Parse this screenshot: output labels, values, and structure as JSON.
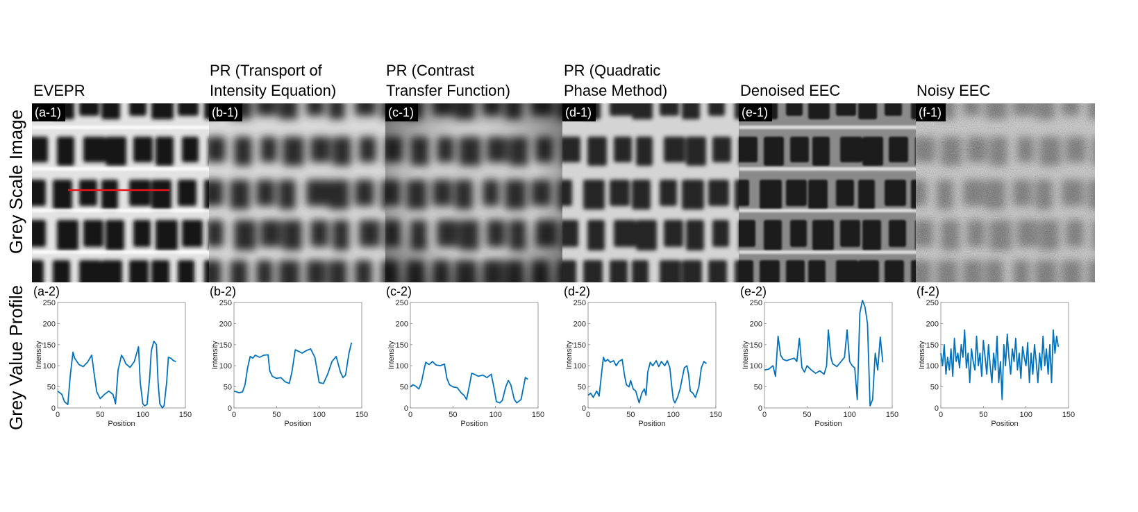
{
  "row_labels": {
    "top": "Grey Scale Image",
    "bottom": "Grey Value Profile"
  },
  "colors": {
    "line": "#0072BD",
    "marker_line": "#E8141B",
    "axis": "#808080"
  },
  "panels": [
    {
      "id": "a",
      "title": "EVEPR",
      "image_label": "(a-1)",
      "plot_label": "(a-2)"
    },
    {
      "id": "b",
      "title": "PR (Transport of\nIntensity Equation)",
      "image_label": "(b-1)",
      "plot_label": "(b-2)"
    },
    {
      "id": "c",
      "title": "PR (Contrast\nTransfer Function)",
      "image_label": "(c-1)",
      "plot_label": "(c-2)"
    },
    {
      "id": "d",
      "title": "PR (Quadratic\nPhase Method)",
      "image_label": "(d-1)",
      "plot_label": "(d-2)"
    },
    {
      "id": "e",
      "title": "Denoised EEC",
      "image_label": "(e-1)",
      "plot_label": "(e-2)"
    },
    {
      "id": "f",
      "title": "Noisy EEC",
      "image_label": "(f-1)",
      "plot_label": "(f-2)"
    }
  ],
  "chart_data": [
    {
      "type": "line",
      "panel": "a-2",
      "xlabel": "Position",
      "ylabel": "Intensity",
      "xlim": [
        0,
        150
      ],
      "ylim": [
        0,
        250
      ],
      "xticks": [
        0,
        50,
        100,
        150
      ],
      "yticks": [
        0,
        50,
        100,
        150,
        200,
        250
      ],
      "x": [
        0,
        5,
        8,
        12,
        15,
        18,
        20,
        25,
        30,
        35,
        40,
        43,
        46,
        50,
        55,
        60,
        65,
        68,
        71,
        75,
        78,
        80,
        85,
        90,
        95,
        97,
        100,
        102,
        105,
        108,
        110,
        113,
        116,
        118,
        120,
        123,
        125,
        128,
        130,
        133,
        136,
        139
      ],
      "y": [
        40,
        32,
        15,
        8,
        80,
        132,
        118,
        103,
        98,
        108,
        125,
        80,
        38,
        22,
        32,
        40,
        32,
        10,
        90,
        125,
        115,
        105,
        96,
        110,
        145,
        60,
        10,
        5,
        8,
        70,
        135,
        158,
        150,
        60,
        10,
        0,
        5,
        60,
        120,
        118,
        112,
        110
      ]
    },
    {
      "type": "line",
      "panel": "b-2",
      "xlabel": "Position",
      "ylabel": "Intensity",
      "xlim": [
        0,
        150
      ],
      "ylim": [
        0,
        250
      ],
      "xticks": [
        0,
        50,
        100,
        150
      ],
      "yticks": [
        0,
        50,
        100,
        150,
        200,
        250
      ],
      "x": [
        0,
        3,
        6,
        10,
        13,
        16,
        19,
        22,
        25,
        30,
        35,
        40,
        42,
        45,
        50,
        55,
        60,
        65,
        68,
        72,
        75,
        80,
        85,
        90,
        95,
        100,
        105,
        110,
        115,
        120,
        125,
        128,
        131,
        135,
        138
      ],
      "y": [
        40,
        38,
        36,
        38,
        55,
        95,
        122,
        118,
        125,
        120,
        125,
        126,
        88,
        75,
        70,
        72,
        62,
        58,
        85,
        138,
        135,
        130,
        136,
        140,
        120,
        60,
        58,
        80,
        110,
        122,
        85,
        72,
        78,
        130,
        155
      ]
    },
    {
      "type": "line",
      "panel": "c-2",
      "xlabel": "Position",
      "ylabel": "Intensity",
      "xlim": [
        0,
        150
      ],
      "ylim": [
        0,
        250
      ],
      "xticks": [
        0,
        50,
        100,
        150
      ],
      "yticks": [
        0,
        50,
        100,
        150,
        200,
        250
      ],
      "x": [
        0,
        3,
        6,
        10,
        13,
        16,
        18,
        22,
        26,
        30,
        35,
        40,
        43,
        46,
        50,
        55,
        60,
        63,
        66,
        70,
        72,
        75,
        80,
        85,
        90,
        95,
        98,
        101,
        105,
        108,
        112,
        115,
        118,
        122,
        125,
        130,
        135,
        138
      ],
      "y": [
        50,
        55,
        52,
        45,
        60,
        90,
        108,
        103,
        110,
        102,
        100,
        104,
        70,
        55,
        50,
        48,
        35,
        30,
        20,
        60,
        82,
        80,
        75,
        78,
        72,
        80,
        50,
        15,
        12,
        18,
        50,
        65,
        55,
        20,
        12,
        20,
        72,
        68
      ]
    },
    {
      "type": "line",
      "panel": "d-2",
      "xlabel": "Position",
      "ylabel": "Intensity",
      "xlim": [
        0,
        150
      ],
      "ylim": [
        0,
        250
      ],
      "xticks": [
        0,
        50,
        100,
        150
      ],
      "yticks": [
        0,
        50,
        100,
        150,
        200,
        250
      ],
      "x": [
        0,
        3,
        6,
        10,
        13,
        16,
        18,
        20,
        23,
        26,
        30,
        33,
        36,
        40,
        43,
        45,
        48,
        50,
        53,
        56,
        58,
        60,
        63,
        66,
        68,
        70,
        73,
        76,
        80,
        83,
        86,
        90,
        93,
        96,
        98,
        100,
        102,
        105,
        108,
        110,
        113,
        116,
        118,
        120,
        123,
        126,
        130,
        133,
        136,
        139
      ],
      "y": [
        30,
        35,
        25,
        40,
        28,
        85,
        120,
        110,
        115,
        108,
        112,
        100,
        110,
        115,
        75,
        55,
        50,
        65,
        45,
        40,
        25,
        12,
        35,
        45,
        30,
        85,
        108,
        100,
        112,
        98,
        110,
        100,
        112,
        95,
        55,
        20,
        12,
        25,
        45,
        65,
        95,
        100,
        80,
        40,
        35,
        25,
        50,
        95,
        110,
        105
      ]
    },
    {
      "type": "line",
      "panel": "e-2",
      "xlabel": "Position",
      "ylabel": "Intensity",
      "xlim": [
        0,
        150
      ],
      "ylim": [
        0,
        250
      ],
      "xticks": [
        0,
        50,
        100,
        150
      ],
      "yticks": [
        0,
        50,
        100,
        150,
        200,
        250
      ],
      "x": [
        0,
        5,
        10,
        13,
        16,
        19,
        22,
        26,
        30,
        35,
        38,
        41,
        44,
        47,
        50,
        55,
        60,
        65,
        70,
        73,
        75,
        78,
        80,
        85,
        90,
        94,
        97,
        100,
        103,
        106,
        109,
        112,
        115,
        118,
        121,
        124,
        127,
        130,
        133,
        136,
        139
      ],
      "y": [
        90,
        92,
        100,
        75,
        170,
        125,
        115,
        112,
        115,
        118,
        110,
        165,
        95,
        85,
        100,
        90,
        82,
        88,
        80,
        100,
        185,
        120,
        105,
        98,
        110,
        120,
        185,
        110,
        100,
        95,
        20,
        225,
        255,
        240,
        200,
        5,
        20,
        130,
        90,
        168,
        108
      ]
    },
    {
      "type": "line",
      "panel": "f-2",
      "xlabel": "Position",
      "ylabel": "Intensity",
      "xlim": [
        0,
        150
      ],
      "ylim": [
        0,
        250
      ],
      "xticks": [
        0,
        50,
        100,
        150
      ],
      "yticks": [
        0,
        50,
        100,
        150,
        200,
        250
      ],
      "x": [
        0,
        2,
        4,
        6,
        8,
        10,
        12,
        14,
        16,
        18,
        20,
        22,
        24,
        26,
        28,
        30,
        32,
        34,
        36,
        38,
        40,
        42,
        44,
        46,
        48,
        50,
        52,
        54,
        56,
        58,
        60,
        62,
        64,
        66,
        68,
        70,
        72,
        74,
        76,
        78,
        80,
        82,
        84,
        86,
        88,
        90,
        92,
        94,
        96,
        98,
        100,
        102,
        104,
        106,
        108,
        110,
        112,
        114,
        116,
        118,
        120,
        122,
        124,
        126,
        128,
        130,
        132,
        134,
        136,
        138
      ],
      "y": [
        130,
        100,
        150,
        80,
        120,
        90,
        140,
        75,
        165,
        110,
        130,
        95,
        150,
        120,
        185,
        95,
        130,
        60,
        140,
        110,
        90,
        170,
        100,
        130,
        75,
        160,
        120,
        80,
        150,
        100,
        60,
        130,
        90,
        170,
        60,
        110,
        20,
        150,
        100,
        175,
        120,
        80,
        140,
        110,
        165,
        90,
        130,
        70,
        145,
        120,
        100,
        155,
        60,
        130,
        80,
        150,
        110,
        60,
        130,
        90,
        170,
        100,
        140,
        80,
        150,
        60,
        185,
        130,
        170,
        145
      ]
    }
  ]
}
